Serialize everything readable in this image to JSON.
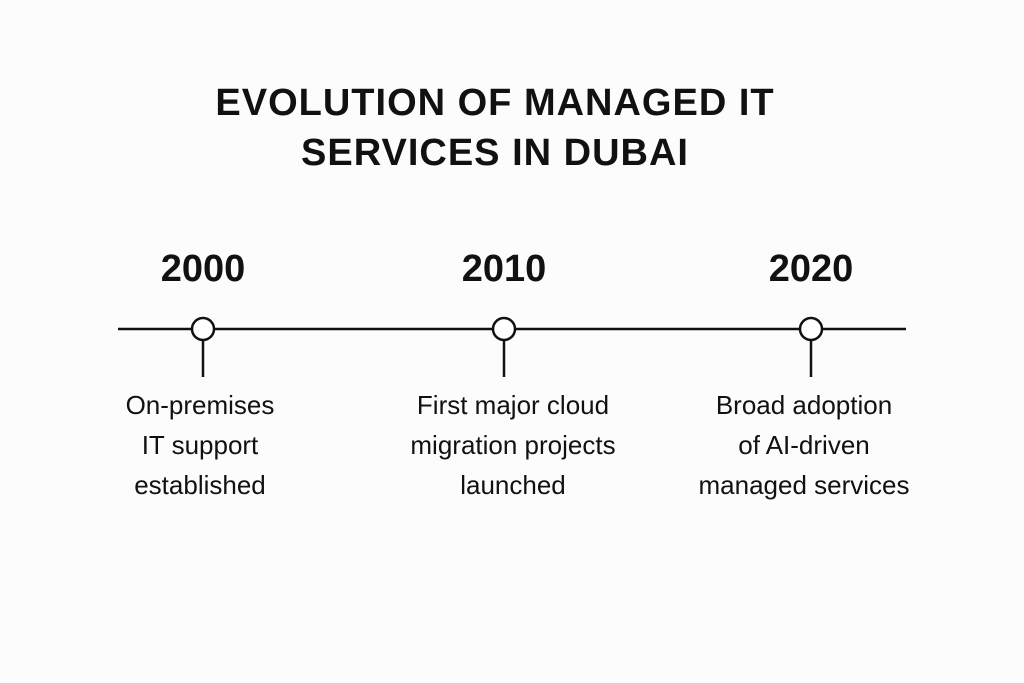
{
  "title": {
    "line1": "EVOLUTION OF MANAGED IT",
    "line2": "SERVICES IN DUBAI"
  },
  "colors": {
    "ink": "#111111",
    "background": "#fcfcfc",
    "marker_fill": "#ffffff"
  },
  "milestones": [
    {
      "year": "2000",
      "lines": [
        "On-premises",
        "IT support",
        "established"
      ]
    },
    {
      "year": "2010",
      "lines": [
        "First major cloud",
        "migration projects",
        "launched"
      ]
    },
    {
      "year": "2020",
      "lines": [
        "Broad adoption",
        "of AI-driven",
        "managed services"
      ]
    }
  ]
}
